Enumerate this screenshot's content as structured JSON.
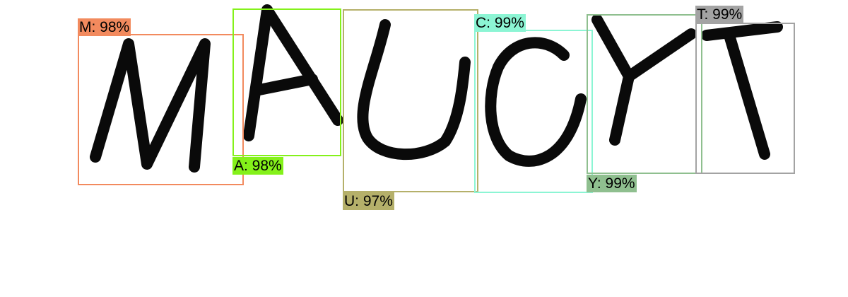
{
  "detections": [
    {
      "letter": "M",
      "label": "M: 98%",
      "color": "#f28a5e"
    },
    {
      "letter": "A",
      "label": "A: 98%",
      "color": "#84f11a"
    },
    {
      "letter": "U",
      "label": "U: 97%",
      "color": "#b5b06a"
    },
    {
      "letter": "C",
      "label": "C: 99%",
      "color": "#8cf5d4"
    },
    {
      "letter": "Y",
      "label": "Y: 99%",
      "color": "#8fbf8f"
    },
    {
      "letter": "T",
      "label": "T: 99%",
      "color": "#a3a3a3"
    }
  ]
}
